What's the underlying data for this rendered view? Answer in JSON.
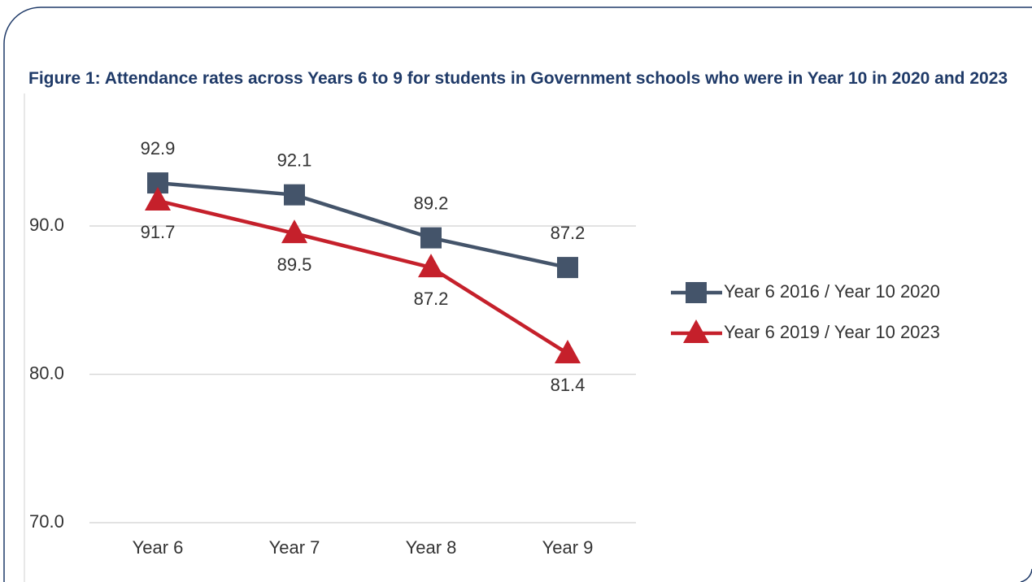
{
  "chart_data": {
    "type": "line",
    "title": "Figure 1: Attendance rates across Years 6 to 9 for students in Government schools who were in Year 10 in 2020 and 2023",
    "categories": [
      "Year 6",
      "Year 7",
      "Year 8",
      "Year 9"
    ],
    "series": [
      {
        "name": "Year 6 2016 / Year 10 2020",
        "color": "#44546a",
        "marker": "square",
        "label_position": "above",
        "values": [
          92.9,
          92.1,
          89.2,
          87.2
        ]
      },
      {
        "name": "Year 6 2019 / Year 10 2023",
        "color": "#c5202b",
        "marker": "triangle",
        "label_position": "below",
        "values": [
          91.7,
          89.5,
          87.2,
          81.4
        ]
      }
    ],
    "ylim": [
      70,
      95
    ],
    "yticks": [
      {
        "value": 70,
        "label": "70.0"
      },
      {
        "value": 80,
        "label": "80.0"
      },
      {
        "value": 90,
        "label": "90.0"
      }
    ],
    "grid": true,
    "legend": "right"
  }
}
